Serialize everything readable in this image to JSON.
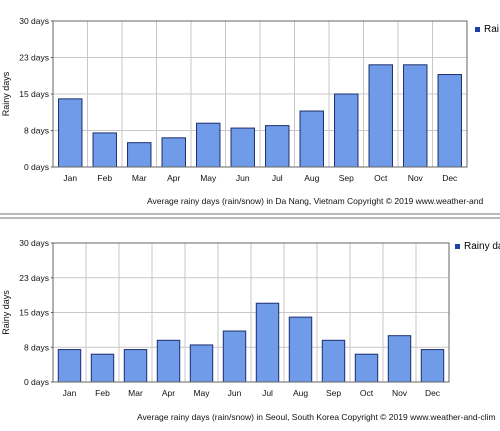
{
  "chart_data": [
    {
      "type": "bar",
      "categories": [
        "Jan",
        "Feb",
        "Mar",
        "Apr",
        "May",
        "Jun",
        "Jul",
        "Aug",
        "Sep",
        "Oct",
        "Nov",
        "Dec"
      ],
      "series": [
        {
          "name": "Rai",
          "values": [
            14,
            7,
            5,
            6,
            9,
            8,
            8.5,
            11.5,
            15,
            21,
            21,
            19
          ]
        }
      ],
      "yticks": [
        "0 days",
        "8 days",
        "15 days",
        "23 days",
        "30 days"
      ],
      "ylabel": "Rainy days",
      "ylim": [
        0,
        30
      ],
      "caption": "Average rainy days (rain/snow) in Da Nang, Vietnam   Copyright © 2019 www.weather-and",
      "legend": "top-right",
      "grid": true,
      "bar_color": "#6f9be8",
      "bar_border": "#1e2f6f",
      "legend_color": "#1c3fa8"
    },
    {
      "type": "bar",
      "categories": [
        "Jan",
        "Feb",
        "Mar",
        "Apr",
        "May",
        "Jun",
        "Jul",
        "Aug",
        "Sep",
        "Oct",
        "Nov",
        "Dec"
      ],
      "series": [
        {
          "name": "Rainy da",
          "values": [
            7,
            6,
            7,
            9,
            8,
            11,
            17,
            14,
            9,
            6,
            10,
            7
          ]
        }
      ],
      "yticks": [
        "0 days",
        "8 days",
        "15 days",
        "23 days",
        "30 days"
      ],
      "ylabel": "Rainy days",
      "ylim": [
        0,
        30
      ],
      "caption": "Average rainy days (rain/snow) in Seoul, South Korea   Copyright © 2019 www.weather-and-clim",
      "legend": "top-right",
      "grid": true,
      "bar_color": "#6f9be8",
      "bar_border": "#1e2f6f",
      "legend_color": "#1c3fa8"
    }
  ]
}
